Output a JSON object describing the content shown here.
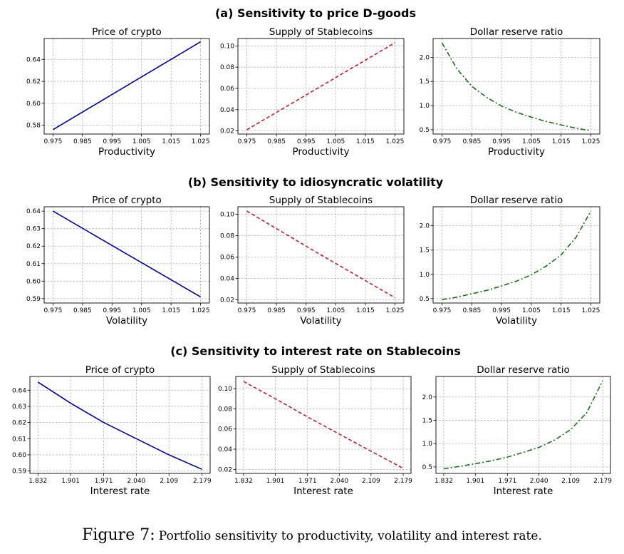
{
  "sections": [
    {
      "title": "(a) Sensitivity to price D-goods"
    },
    {
      "title": "(b) Sensitivity to idiosyncratic volatility"
    },
    {
      "title": "(c) Sensitivity to interest rate on Stablecoins"
    }
  ],
  "caption": {
    "label": "Figure 7:",
    "text": "Portfolio sensitivity to productivity, volatility and interest rate."
  },
  "colors": {
    "price": "#0000a0",
    "supply": "#c0202a",
    "reserve": "#1a6e1a"
  },
  "chart_data": [
    {
      "type": "line",
      "section": 0,
      "title": "Price of crypto",
      "xlabel": "Productivity",
      "xlim": [
        0.972,
        1.028
      ],
      "ylim": [
        0.572,
        0.659
      ],
      "xticks": [
        0.975,
        0.985,
        0.995,
        1.005,
        1.015,
        1.025
      ],
      "xtick_labels": [
        "0.975",
        "0.985",
        "0.995",
        "1.005",
        "1.015",
        "1.025"
      ],
      "yticks": [
        0.58,
        0.6,
        0.62,
        0.64
      ],
      "ytick_labels": [
        "0.58",
        "0.60",
        "0.62",
        "0.64"
      ],
      "line_style": "solid",
      "color": "#0000a0",
      "series": [
        {
          "x": [
            0.975,
            1.0,
            1.025
          ],
          "y": [
            0.576,
            0.616,
            0.656
          ]
        }
      ]
    },
    {
      "type": "line",
      "section": 0,
      "title": "Supply of Stablecoins",
      "xlabel": "Productivity",
      "xlim": [
        0.972,
        1.028
      ],
      "ylim": [
        0.017,
        0.107
      ],
      "xticks": [
        0.975,
        0.985,
        0.995,
        1.005,
        1.015,
        1.025
      ],
      "xtick_labels": [
        "0.975",
        "0.985",
        "0.995",
        "1.005",
        "1.015",
        "1.025"
      ],
      "yticks": [
        0.02,
        0.04,
        0.06,
        0.08,
        0.1
      ],
      "ytick_labels": [
        "0.02",
        "0.04",
        "0.06",
        "0.08",
        "0.10"
      ],
      "line_style": "dashed",
      "color": "#c0202a",
      "series": [
        {
          "x": [
            0.975,
            1.0,
            1.025
          ],
          "y": [
            0.021,
            0.062,
            0.103
          ]
        }
      ]
    },
    {
      "type": "line",
      "section": 0,
      "title": "Dollar reserve ratio",
      "xlabel": "Productivity",
      "xlim": [
        0.972,
        1.028
      ],
      "ylim": [
        0.41,
        2.39
      ],
      "xticks": [
        0.975,
        0.985,
        0.995,
        1.005,
        1.015,
        1.025
      ],
      "xtick_labels": [
        "0.975",
        "0.985",
        "0.995",
        "1.005",
        "1.015",
        "1.025"
      ],
      "yticks": [
        0.5,
        1.0,
        1.5,
        2.0
      ],
      "ytick_labels": [
        "0.5",
        "1.0",
        "1.5",
        "2.0"
      ],
      "line_style": "dashdot",
      "color": "#1a6e1a",
      "series": [
        {
          "x": [
            0.975,
            0.98,
            0.985,
            0.99,
            0.995,
            1.0,
            1.005,
            1.01,
            1.015,
            1.02,
            1.025
          ],
          "y": [
            2.3,
            1.76,
            1.4,
            1.17,
            0.99,
            0.86,
            0.76,
            0.67,
            0.6,
            0.53,
            0.48
          ]
        }
      ]
    },
    {
      "type": "line",
      "section": 1,
      "title": "Price of crypto",
      "xlabel": "Volatility",
      "xlim": [
        0.972,
        1.028
      ],
      "ylim": [
        0.5875,
        0.6425
      ],
      "xticks": [
        0.975,
        0.985,
        0.995,
        1.005,
        1.015,
        1.025
      ],
      "xtick_labels": [
        "0.975",
        "0.985",
        "0.995",
        "1.005",
        "1.015",
        "1.025"
      ],
      "yticks": [
        0.59,
        0.6,
        0.61,
        0.62,
        0.63,
        0.64
      ],
      "ytick_labels": [
        "0.59",
        "0.60",
        "0.61",
        "0.62",
        "0.63",
        "0.64"
      ],
      "line_style": "solid",
      "color": "#0000a0",
      "series": [
        {
          "x": [
            0.975,
            1.0,
            1.025
          ],
          "y": [
            0.64,
            0.6155,
            0.591
          ]
        }
      ]
    },
    {
      "type": "line",
      "section": 1,
      "title": "Supply of Stablecoins",
      "xlabel": "Volatility",
      "xlim": [
        0.972,
        1.028
      ],
      "ylim": [
        0.017,
        0.107
      ],
      "xticks": [
        0.975,
        0.985,
        0.995,
        1.005,
        1.015,
        1.025
      ],
      "xtick_labels": [
        "0.975",
        "0.985",
        "0.995",
        "1.005",
        "1.015",
        "1.025"
      ],
      "yticks": [
        0.02,
        0.04,
        0.06,
        0.08,
        0.1
      ],
      "ytick_labels": [
        "0.02",
        "0.04",
        "0.06",
        "0.08",
        "0.10"
      ],
      "line_style": "dashed",
      "color": "#c0202a",
      "series": [
        {
          "x": [
            0.975,
            1.0,
            1.025
          ],
          "y": [
            0.103,
            0.062,
            0.022
          ]
        }
      ]
    },
    {
      "type": "line",
      "section": 1,
      "title": "Dollar reserve ratio",
      "xlabel": "Volatility",
      "xlim": [
        0.972,
        1.028
      ],
      "ylim": [
        0.41,
        2.39
      ],
      "xticks": [
        0.975,
        0.985,
        0.995,
        1.005,
        1.015,
        1.025
      ],
      "xtick_labels": [
        "0.975",
        "0.985",
        "0.995",
        "1.005",
        "1.015",
        "1.025"
      ],
      "yticks": [
        0.5,
        1.0,
        1.5,
        2.0
      ],
      "ytick_labels": [
        "0.5",
        "1.0",
        "1.5",
        "2.0"
      ],
      "line_style": "dashdot",
      "color": "#1a6e1a",
      "series": [
        {
          "x": [
            0.975,
            0.98,
            0.985,
            0.99,
            0.995,
            1.0,
            1.005,
            1.01,
            1.015,
            1.02,
            1.025
          ],
          "y": [
            0.48,
            0.53,
            0.6,
            0.67,
            0.76,
            0.86,
            0.99,
            1.17,
            1.4,
            1.76,
            2.3
          ]
        }
      ]
    },
    {
      "type": "line",
      "section": 2,
      "title": "Price of crypto",
      "xlabel": "Interest rate",
      "xlim": [
        1.815,
        2.196
      ],
      "ylim": [
        0.5885,
        0.6485
      ],
      "xticks": [
        1.832,
        1.901,
        1.971,
        2.04,
        2.109,
        2.179
      ],
      "xtick_labels": [
        "1.832",
        "1.901",
        "1.971",
        "2.040",
        "2.109",
        "2.179"
      ],
      "yticks": [
        0.59,
        0.6,
        0.61,
        0.62,
        0.63,
        0.64
      ],
      "ytick_labels": [
        "0.59",
        "0.60",
        "0.61",
        "0.62",
        "0.63",
        "0.64"
      ],
      "line_style": "solid",
      "color": "#0000a0",
      "series": [
        {
          "x": [
            1.832,
            1.901,
            1.971,
            2.04,
            2.109,
            2.179
          ],
          "y": [
            0.645,
            0.632,
            0.62,
            0.61,
            0.6,
            0.591
          ]
        }
      ]
    },
    {
      "type": "line",
      "section": 2,
      "title": "Supply of Stablecoins",
      "xlabel": "Interest rate",
      "xlim": [
        1.815,
        2.196
      ],
      "ylim": [
        0.016,
        0.112
      ],
      "xticks": [
        1.832,
        1.901,
        1.971,
        2.04,
        2.109,
        2.179
      ],
      "xtick_labels": [
        "1.832",
        "1.901",
        "1.971",
        "2.040",
        "2.109",
        "2.179"
      ],
      "yticks": [
        0.02,
        0.04,
        0.06,
        0.08,
        0.1
      ],
      "ytick_labels": [
        "0.02",
        "0.04",
        "0.06",
        "0.08",
        "0.10"
      ],
      "line_style": "dashed",
      "color": "#c0202a",
      "series": [
        {
          "x": [
            1.832,
            1.901,
            1.971,
            2.04,
            2.109,
            2.179
          ],
          "y": [
            0.107,
            0.09,
            0.072,
            0.055,
            0.038,
            0.021
          ]
        }
      ]
    },
    {
      "type": "line",
      "section": 2,
      "title": "Dollar reserve ratio",
      "xlabel": "Interest rate",
      "xlim": [
        1.815,
        2.196
      ],
      "ylim": [
        0.36,
        2.44
      ],
      "xticks": [
        1.832,
        1.901,
        1.971,
        2.04,
        2.109,
        2.179
      ],
      "xtick_labels": [
        "1.832",
        "1.901",
        "1.971",
        "2.040",
        "2.109",
        "2.179"
      ],
      "yticks": [
        0.5,
        1.0,
        1.5,
        2.0
      ],
      "ytick_labels": [
        "0.5",
        "1.0",
        "1.5",
        "2.0"
      ],
      "line_style": "dashdot",
      "color": "#1a6e1a",
      "series": [
        {
          "x": [
            1.832,
            1.866,
            1.901,
            1.936,
            1.971,
            2.005,
            2.04,
            2.075,
            2.109,
            2.144,
            2.179
          ],
          "y": [
            0.46,
            0.51,
            0.57,
            0.63,
            0.71,
            0.81,
            0.92,
            1.08,
            1.3,
            1.66,
            2.35
          ]
        }
      ]
    }
  ]
}
